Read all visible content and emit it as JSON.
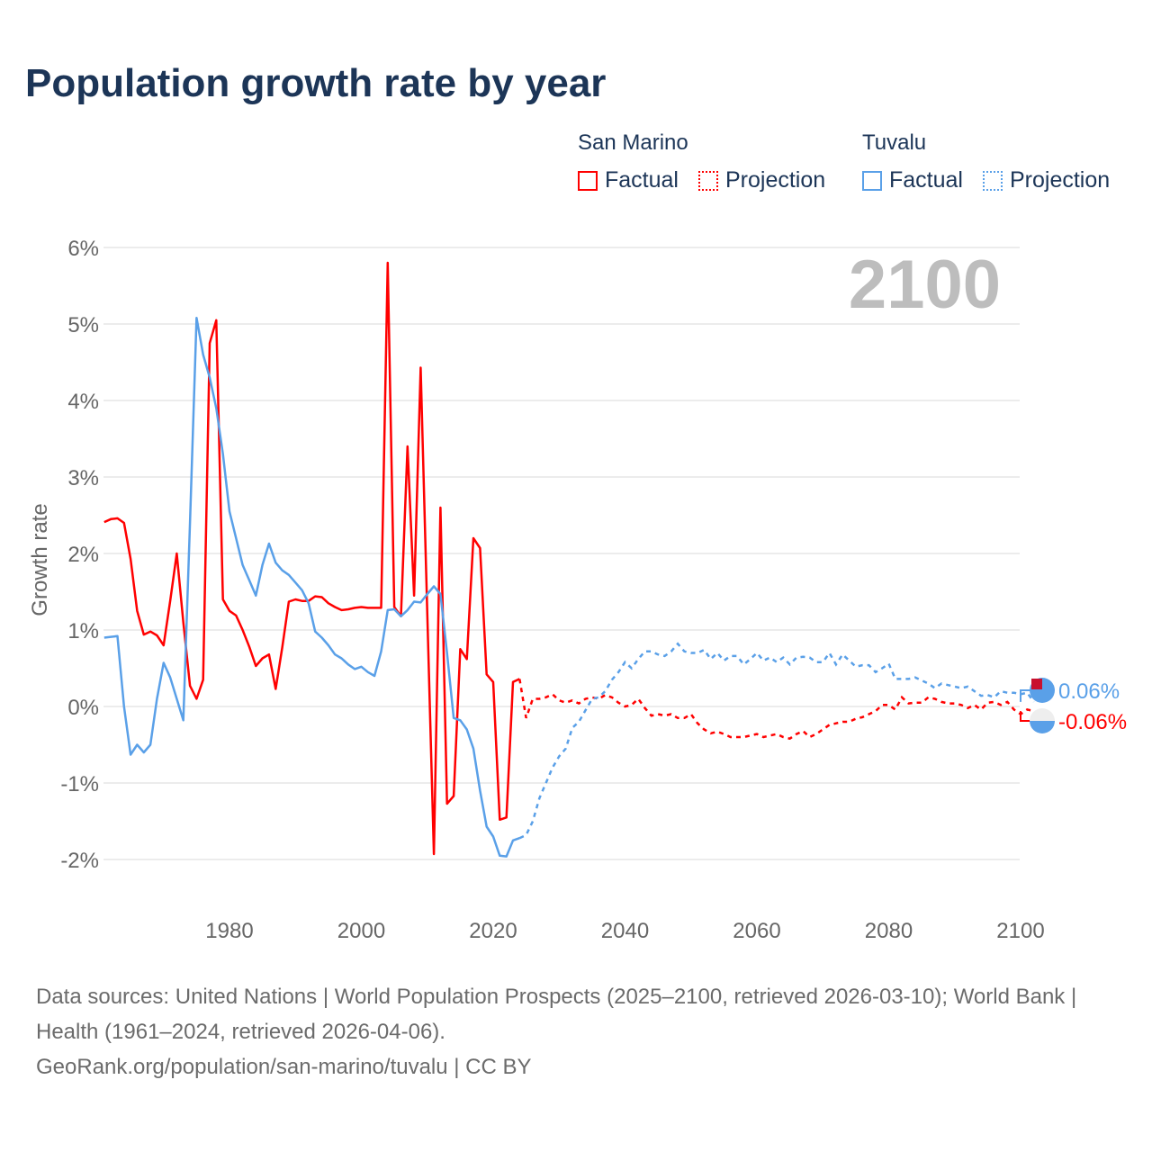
{
  "title": "Population growth rate by year",
  "legend": {
    "groups": [
      {
        "name": "San Marino",
        "factual": "Factual",
        "projection": "Projection",
        "color": "#ff0000"
      },
      {
        "name": "Tuvalu",
        "factual": "Factual",
        "projection": "Projection",
        "color": "#5aa0e8"
      }
    ]
  },
  "source_line1": "Data sources: United Nations | World Population Prospects (2025–2100, retrieved 2026-03-10); World Bank | Health (1961–2024, retrieved 2026-04-06).",
  "source_line2": "GeoRank.org/population/san-marino/tuvalu | CC BY",
  "chart_data": {
    "type": "line",
    "title": "Population growth rate by year",
    "xlabel": "",
    "ylabel": "Growth rate",
    "year_label": "2100",
    "xlim": [
      1961,
      2100
    ],
    "ylim": [
      -2.3,
      6.1
    ],
    "x_ticks": [
      1980,
      2000,
      2020,
      2040,
      2060,
      2080,
      2100
    ],
    "y_ticks": [
      -2,
      -1,
      0,
      1,
      2,
      3,
      4,
      5,
      6
    ],
    "y_tick_labels": [
      "-2%",
      "-1%",
      "0%",
      "1%",
      "2%",
      "3%",
      "4%",
      "5%",
      "6%"
    ],
    "grid": true,
    "legend_position": "top-right",
    "series": [
      {
        "name": "San Marino",
        "color": "#ff0000",
        "end_label": "-0.06%",
        "factual_start": 1961,
        "factual": [
          2.41,
          2.45,
          2.46,
          2.4,
          1.93,
          1.25,
          0.94,
          0.98,
          0.93,
          0.8,
          1.38,
          2.0,
          1.1,
          0.27,
          0.1,
          0.35,
          4.75,
          5.05,
          1.4,
          1.25,
          1.19,
          1.0,
          0.78,
          0.53,
          0.63,
          0.68,
          0.23,
          0.77,
          1.37,
          1.4,
          1.38,
          1.38,
          1.44,
          1.43,
          1.35,
          1.3,
          1.26,
          1.27,
          1.29,
          1.3,
          1.29,
          1.29,
          1.29,
          5.8,
          1.3,
          1.18,
          3.4,
          1.45,
          4.43,
          1.2,
          -1.93,
          2.6,
          -1.27,
          -1.17,
          0.75,
          0.62,
          2.2,
          2.07,
          0.42,
          0.32,
          -1.48,
          -1.45,
          0.32,
          0.36
        ],
        "projection_start": 2024,
        "projection": [
          0.36,
          -0.15,
          0.1,
          0.1,
          0.12,
          0.16,
          0.08,
          0.05,
          0.08,
          0.04,
          0.1,
          0.12,
          0.1,
          0.15,
          0.12,
          0.05,
          0.0,
          0.02,
          0.1,
          -0.02,
          -0.12,
          -0.1,
          -0.12,
          -0.1,
          -0.15,
          -0.15,
          -0.1,
          -0.22,
          -0.3,
          -0.35,
          -0.33,
          -0.36,
          -0.4,
          -0.4,
          -0.4,
          -0.38,
          -0.36,
          -0.4,
          -0.38,
          -0.36,
          -0.4,
          -0.42,
          -0.36,
          -0.32,
          -0.4,
          -0.36,
          -0.3,
          -0.24,
          -0.22,
          -0.2,
          -0.2,
          -0.16,
          -0.14,
          -0.1,
          -0.06,
          0.02,
          0.02,
          -0.04,
          0.12,
          0.04,
          0.05,
          0.05,
          0.12,
          0.1,
          0.06,
          0.04,
          0.04,
          0.02,
          -0.02,
          0.02,
          -0.04,
          0.05,
          0.06,
          0.02,
          0.06,
          -0.04,
          -0.1,
          -0.04,
          -0.06
        ]
      },
      {
        "name": "Tuvalu",
        "color": "#5aa0e8",
        "end_label": "0.06%",
        "factual_start": 1961,
        "factual": [
          0.9,
          0.91,
          0.92,
          0.0,
          -0.63,
          -0.5,
          -0.6,
          -0.5,
          0.1,
          0.57,
          0.38,
          0.1,
          -0.18,
          2.4,
          5.08,
          4.6,
          4.3,
          3.9,
          3.3,
          2.55,
          2.2,
          1.85,
          1.65,
          1.45,
          1.85,
          2.13,
          1.88,
          1.78,
          1.72,
          1.62,
          1.52,
          1.35,
          0.98,
          0.9,
          0.8,
          0.68,
          0.63,
          0.55,
          0.49,
          0.52,
          0.45,
          0.4,
          0.72,
          1.26,
          1.27,
          1.18,
          1.26,
          1.37,
          1.36,
          1.47,
          1.57,
          1.47,
          0.7,
          -0.15,
          -0.18,
          -0.3,
          -0.55,
          -1.1,
          -1.57,
          -1.7,
          -1.95,
          -1.96,
          -1.75,
          -1.72
        ],
        "projection_start": 2024,
        "projection": [
          -1.72,
          -1.68,
          -1.5,
          -1.2,
          -1.0,
          -0.8,
          -0.65,
          -0.55,
          -0.28,
          -0.2,
          -0.05,
          0.1,
          0.12,
          0.2,
          0.35,
          0.45,
          0.58,
          0.5,
          0.62,
          0.72,
          0.72,
          0.68,
          0.66,
          0.72,
          0.82,
          0.72,
          0.7,
          0.7,
          0.74,
          0.62,
          0.7,
          0.6,
          0.66,
          0.66,
          0.55,
          0.62,
          0.7,
          0.6,
          0.64,
          0.58,
          0.64,
          0.55,
          0.64,
          0.65,
          0.64,
          0.58,
          0.58,
          0.7,
          0.55,
          0.68,
          0.6,
          0.52,
          0.54,
          0.54,
          0.45,
          0.5,
          0.56,
          0.36,
          0.36,
          0.36,
          0.38,
          0.34,
          0.3,
          0.24,
          0.3,
          0.28,
          0.26,
          0.24,
          0.26,
          0.2,
          0.14,
          0.15,
          0.12,
          0.2,
          0.18,
          0.18,
          0.16,
          0.18,
          0.06
        ]
      }
    ]
  }
}
